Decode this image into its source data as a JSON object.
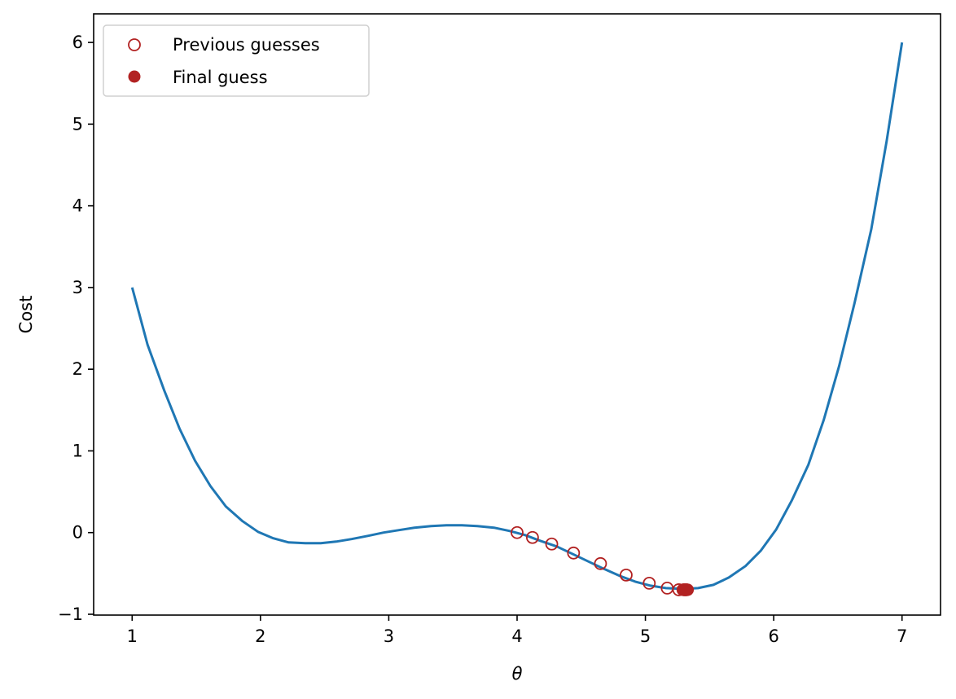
{
  "chart_data": {
    "type": "line",
    "xlabel": "θ",
    "ylabel": "Cost",
    "xlim": [
      0.7,
      7.3
    ],
    "ylim": [
      -1.01,
      6.35
    ],
    "x_ticks": [
      1,
      2,
      3,
      4,
      5,
      6,
      7
    ],
    "y_ticks": [
      -1,
      0,
      1,
      2,
      3,
      4,
      5,
      6
    ],
    "grid": false,
    "legend_position": "top-left",
    "colors": {
      "curve": "#1f77b4",
      "guesses": "#b22222"
    },
    "series": [
      {
        "type": "line",
        "x": [
          1.0,
          1.12,
          1.25,
          1.37,
          1.49,
          1.61,
          1.73,
          1.86,
          1.98,
          2.1,
          2.22,
          2.35,
          2.47,
          2.59,
          2.71,
          2.84,
          2.96,
          3.08,
          3.2,
          3.33,
          3.45,
          3.57,
          3.69,
          3.82,
          3.94,
          4.06,
          4.18,
          4.31,
          4.43,
          4.55,
          4.67,
          4.8,
          4.92,
          5.04,
          5.16,
          5.29,
          5.41,
          5.53,
          5.65,
          5.78,
          5.9,
          6.02,
          6.14,
          6.27,
          6.39,
          6.51,
          6.63,
          6.76,
          6.88,
          7.0
        ],
        "y": [
          3.0,
          2.3,
          1.74,
          1.27,
          0.88,
          0.57,
          0.32,
          0.14,
          0.01,
          -0.07,
          -0.12,
          -0.13,
          -0.13,
          -0.11,
          -0.08,
          -0.04,
          0.0,
          0.03,
          0.06,
          0.08,
          0.09,
          0.09,
          0.08,
          0.06,
          0.02,
          -0.03,
          -0.1,
          -0.17,
          -0.26,
          -0.35,
          -0.44,
          -0.53,
          -0.6,
          -0.65,
          -0.68,
          -0.69,
          -0.68,
          -0.64,
          -0.55,
          -0.41,
          -0.22,
          0.04,
          0.39,
          0.83,
          1.38,
          2.04,
          2.81,
          3.71,
          4.79,
          6.0
        ]
      },
      {
        "type": "scatter",
        "name": "Previous guesses",
        "marker": "open-circle",
        "x": [
          4.0,
          4.12,
          4.27,
          4.44,
          4.65,
          4.85,
          5.03,
          5.17,
          5.26,
          5.3,
          5.31,
          5.32
        ],
        "y": [
          0.0,
          -0.06,
          -0.14,
          -0.25,
          -0.38,
          -0.52,
          -0.62,
          -0.68,
          -0.7,
          -0.7,
          -0.7,
          -0.7
        ]
      },
      {
        "type": "scatter",
        "name": "Final guess",
        "marker": "filled-circle",
        "x": [
          5.29,
          5.31,
          5.32,
          5.33
        ],
        "y": [
          -0.7,
          -0.7,
          -0.7,
          -0.7
        ]
      }
    ]
  }
}
